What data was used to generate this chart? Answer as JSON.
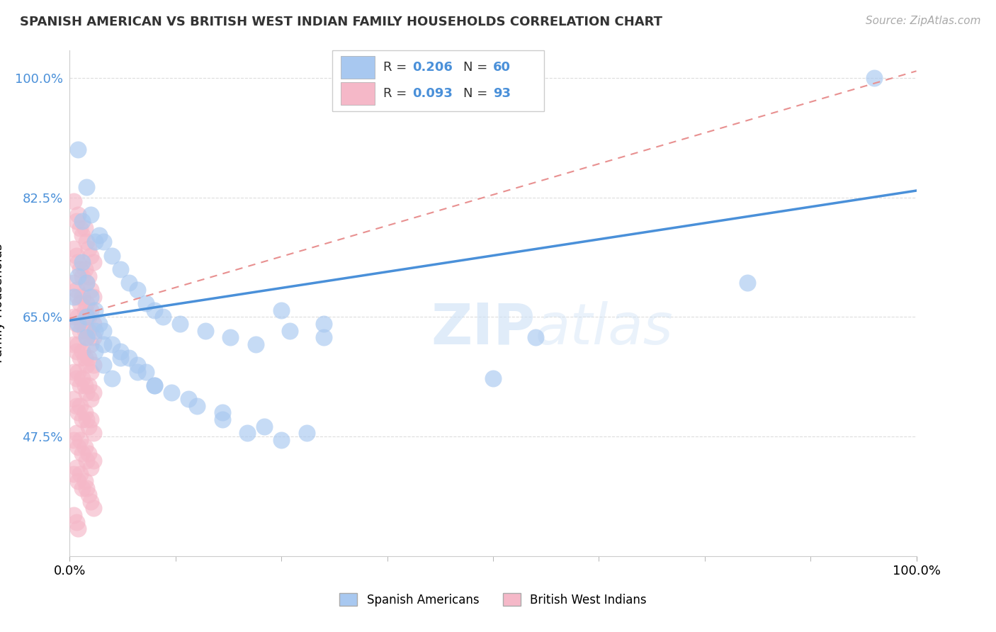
{
  "title": "SPANISH AMERICAN VS BRITISH WEST INDIAN FAMILY HOUSEHOLDS CORRELATION CHART",
  "source": "Source: ZipAtlas.com",
  "ylabel": "Family Households",
  "xlim": [
    0,
    1
  ],
  "ylim": [
    0.3,
    1.04
  ],
  "yticks": [
    0.475,
    0.65,
    0.825,
    1.0
  ],
  "ytick_labels": [
    "47.5%",
    "65.0%",
    "82.5%",
    "100.0%"
  ],
  "xticks": [
    0.0,
    1.0
  ],
  "xtick_labels": [
    "0.0%",
    "100.0%"
  ],
  "blue_color": "#A8C8F0",
  "pink_color": "#F5B8C8",
  "blue_line_color": "#4A90D9",
  "pink_line_color": "#E89090",
  "blue_line_x": [
    0.0,
    1.0
  ],
  "blue_line_y": [
    0.645,
    0.835
  ],
  "pink_line_x": [
    0.0,
    1.0
  ],
  "pink_line_y": [
    0.648,
    1.01
  ],
  "blue_scatter_x": [
    0.01,
    0.015,
    0.02,
    0.025,
    0.03,
    0.035,
    0.04,
    0.05,
    0.06,
    0.07,
    0.08,
    0.09,
    0.1,
    0.11,
    0.13,
    0.16,
    0.19,
    0.22,
    0.26,
    0.3,
    0.005,
    0.01,
    0.015,
    0.02,
    0.025,
    0.03,
    0.035,
    0.04,
    0.05,
    0.06,
    0.07,
    0.08,
    0.09,
    0.1,
    0.12,
    0.15,
    0.18,
    0.21,
    0.25,
    0.5,
    0.02,
    0.03,
    0.04,
    0.06,
    0.08,
    0.1,
    0.14,
    0.18,
    0.23,
    0.28,
    0.95,
    0.01,
    0.02,
    0.03,
    0.04,
    0.05,
    0.25,
    0.3,
    0.55,
    0.8
  ],
  "blue_scatter_y": [
    0.895,
    0.79,
    0.84,
    0.8,
    0.76,
    0.77,
    0.76,
    0.74,
    0.72,
    0.7,
    0.69,
    0.67,
    0.66,
    0.65,
    0.64,
    0.63,
    0.62,
    0.61,
    0.63,
    0.62,
    0.68,
    0.71,
    0.73,
    0.7,
    0.68,
    0.66,
    0.64,
    0.63,
    0.61,
    0.6,
    0.59,
    0.58,
    0.57,
    0.55,
    0.54,
    0.52,
    0.5,
    0.48,
    0.47,
    0.56,
    0.65,
    0.63,
    0.61,
    0.59,
    0.57,
    0.55,
    0.53,
    0.51,
    0.49,
    0.48,
    1.0,
    0.64,
    0.62,
    0.6,
    0.58,
    0.56,
    0.66,
    0.64,
    0.62,
    0.7
  ],
  "pink_scatter_x": [
    0.005,
    0.008,
    0.01,
    0.012,
    0.015,
    0.018,
    0.02,
    0.022,
    0.025,
    0.028,
    0.005,
    0.008,
    0.01,
    0.012,
    0.015,
    0.018,
    0.02,
    0.022,
    0.025,
    0.028,
    0.005,
    0.008,
    0.01,
    0.012,
    0.015,
    0.018,
    0.02,
    0.022,
    0.025,
    0.028,
    0.005,
    0.008,
    0.01,
    0.012,
    0.015,
    0.018,
    0.02,
    0.022,
    0.025,
    0.028,
    0.005,
    0.008,
    0.01,
    0.012,
    0.015,
    0.018,
    0.02,
    0.022,
    0.025,
    0.028,
    0.005,
    0.008,
    0.01,
    0.012,
    0.015,
    0.018,
    0.02,
    0.022,
    0.025,
    0.028,
    0.005,
    0.008,
    0.01,
    0.012,
    0.015,
    0.018,
    0.02,
    0.022,
    0.025,
    0.028,
    0.005,
    0.008,
    0.01,
    0.012,
    0.015,
    0.018,
    0.02,
    0.022,
    0.025,
    0.028,
    0.005,
    0.008,
    0.01,
    0.012,
    0.015,
    0.018,
    0.02,
    0.022,
    0.025,
    0.028,
    0.005,
    0.008,
    0.01
  ],
  "pink_scatter_y": [
    0.82,
    0.79,
    0.8,
    0.78,
    0.77,
    0.78,
    0.76,
    0.75,
    0.74,
    0.73,
    0.75,
    0.74,
    0.73,
    0.72,
    0.71,
    0.72,
    0.7,
    0.71,
    0.69,
    0.68,
    0.7,
    0.69,
    0.68,
    0.67,
    0.68,
    0.66,
    0.67,
    0.65,
    0.66,
    0.64,
    0.65,
    0.64,
    0.65,
    0.63,
    0.64,
    0.63,
    0.62,
    0.63,
    0.61,
    0.62,
    0.61,
    0.6,
    0.61,
    0.59,
    0.6,
    0.59,
    0.58,
    0.59,
    0.57,
    0.58,
    0.57,
    0.56,
    0.57,
    0.55,
    0.56,
    0.55,
    0.54,
    0.55,
    0.53,
    0.54,
    0.53,
    0.52,
    0.51,
    0.52,
    0.5,
    0.51,
    0.5,
    0.49,
    0.5,
    0.48,
    0.47,
    0.48,
    0.46,
    0.47,
    0.45,
    0.46,
    0.44,
    0.45,
    0.43,
    0.44,
    0.42,
    0.43,
    0.41,
    0.42,
    0.4,
    0.41,
    0.4,
    0.39,
    0.38,
    0.37,
    0.36,
    0.35,
    0.34
  ]
}
